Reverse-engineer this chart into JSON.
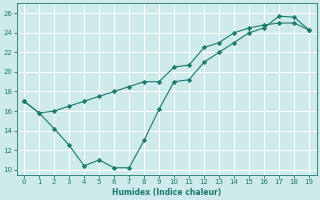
{
  "line1_x": [
    0,
    1,
    2,
    3,
    4,
    5,
    6,
    7,
    8,
    9,
    10,
    11,
    12,
    13,
    14,
    15,
    16,
    17,
    18,
    19
  ],
  "line1_y": [
    17.0,
    15.8,
    16.0,
    16.5,
    17.0,
    17.5,
    18.0,
    18.5,
    19.0,
    19.0,
    20.5,
    20.7,
    22.5,
    23.0,
    24.0,
    24.5,
    24.8,
    25.0,
    25.0,
    24.3
  ],
  "line2_x": [
    0,
    1,
    2,
    3,
    4,
    5,
    6,
    7,
    8,
    9,
    10,
    11,
    12,
    13,
    14,
    15,
    16,
    17,
    18,
    19
  ],
  "line2_y": [
    17.0,
    15.8,
    14.2,
    12.5,
    10.4,
    11.0,
    10.2,
    10.2,
    13.0,
    16.2,
    19.0,
    19.2,
    21.0,
    22.0,
    23.0,
    24.0,
    24.5,
    25.7,
    25.6,
    24.3
  ],
  "line_color": "#1a7a6e",
  "marker": "D",
  "marker_size": 2.2,
  "xlabel": "Humidex (Indice chaleur)",
  "xlim": [
    -0.5,
    19.5
  ],
  "ylim": [
    9.5,
    27.0
  ],
  "yticks": [
    10,
    12,
    14,
    16,
    18,
    20,
    22,
    24,
    26
  ],
  "xticks": [
    0,
    1,
    2,
    3,
    4,
    5,
    6,
    7,
    8,
    9,
    10,
    11,
    12,
    13,
    14,
    15,
    16,
    17,
    18,
    19
  ],
  "bg_color": "#ceeaea",
  "grid_color": "#ffffff"
}
